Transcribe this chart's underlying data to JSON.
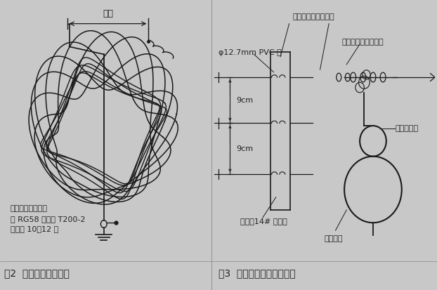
{
  "bg_color": "#c8c8c8",
  "panel_bg": "#d8d8d8",
  "line_color": "#1a1a1a",
  "text_color": "#222222",
  "fig_caption_left": "图2  空芯巴伦绕制方法",
  "fig_caption_right": "图3  电缆与比绝缘子的连接",
  "label_tianxian": "天线",
  "label_chuanzhuo": "振子与分离器的捆扎",
  "label_pvc": "φ12.7mm PVC 管",
  "label_cable_ins": "电缆与绝缘子的连接",
  "label_9cm_1": "9cm",
  "label_9cm_2": "9cm",
  "label_zhendian": "振子：14# 硬铜线",
  "label_balun": "空芯巴伦",
  "label_cable_fix": "电缆的固定",
  "label_toroid": "磁环绕制的巴伦：\n用 RG58 电缆在 T200-2\n上绕制 10～12 圈",
  "font_size_caption": 10,
  "font_size_label": 8
}
